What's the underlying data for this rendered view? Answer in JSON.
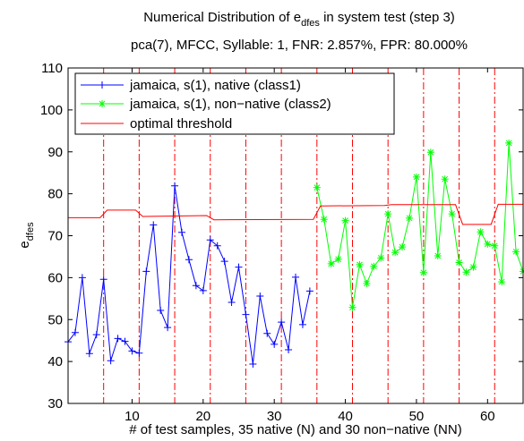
{
  "chart_data": {
    "type": "line",
    "title_line1_prefix": "Numerical Distribution of e",
    "title_line1_sub": "dfes",
    "title_line1_suffix": " in system test (step 3)",
    "title_line2": "pca(7), MFCC, Syllable: 1, FNR: 2.857%, FPR: 80.000%",
    "xlabel": "# of test samples, 35 native (N) and 30 non−native (NN)",
    "ylabel_main": "e",
    "ylabel_sub": "dfes",
    "xlim": [
      1,
      65
    ],
    "ylim": [
      30,
      110
    ],
    "xticks": [
      10,
      20,
      30,
      40,
      50,
      60
    ],
    "yticks": [
      30,
      40,
      50,
      60,
      70,
      80,
      90,
      100,
      110
    ],
    "xtick_labels": [
      "10",
      "20",
      "30",
      "40",
      "50",
      "60"
    ],
    "ytick_labels": [
      "30",
      "40",
      "50",
      "60",
      "70",
      "80",
      "90",
      "100",
      "110"
    ],
    "legend_position": "top-left",
    "grid": false,
    "colors": {
      "native": "#0000ff",
      "non_native": "#00ff00",
      "threshold": "#ff0000",
      "boundary": "#ff0000"
    },
    "series": [
      {
        "name": "jamaica, s(1), native (class1)",
        "marker": "plus",
        "x": [
          1,
          2,
          3,
          4,
          5,
          6,
          7,
          8,
          9,
          10,
          11,
          12,
          13,
          14,
          15,
          16,
          17,
          18,
          19,
          20,
          21,
          22,
          23,
          24,
          25,
          26,
          27,
          28,
          29,
          30,
          31,
          32,
          33,
          34,
          35
        ],
        "values": [
          44.7,
          46.9,
          60.0,
          41.9,
          46.4,
          59.6,
          40.2,
          45.5,
          44.8,
          42.5,
          42.0,
          61.5,
          72.6,
          52.2,
          48.1,
          81.9,
          70.8,
          64.3,
          58.1,
          56.9,
          69.0,
          67.6,
          63.9,
          54.1,
          62.5,
          51.2,
          39.4,
          55.6,
          46.7,
          44.1,
          49.4,
          42.8,
          60.1,
          48.8,
          56.8
        ]
      },
      {
        "name": "jamaica, s(1), non−native (class2)",
        "marker": "star",
        "x": [
          36,
          37,
          38,
          39,
          40,
          41,
          42,
          43,
          44,
          45,
          46,
          47,
          48,
          49,
          50,
          51,
          52,
          53,
          54,
          55,
          56,
          57,
          58,
          59,
          60,
          61,
          62,
          63,
          64,
          65
        ],
        "values": [
          81.5,
          73.9,
          63.3,
          64.4,
          73.6,
          52.9,
          63.1,
          58.6,
          62.7,
          64.7,
          75.2,
          66.0,
          67.3,
          74.2,
          84.0,
          61.2,
          89.9,
          65.2,
          83.5,
          75.2,
          63.6,
          61.3,
          62.5,
          70.9,
          68.0,
          67.6,
          59.0,
          92.1,
          66.2,
          61.5
        ]
      },
      {
        "name": "optimal threshold",
        "marker": "none",
        "x": [
          1,
          5.5,
          6.5,
          10.5,
          11.5,
          20.5,
          21.5,
          35.5,
          36.5,
          45.5,
          46.5,
          55.5,
          56.5,
          60.5,
          61.5,
          65
        ],
        "values": [
          74.3,
          74.3,
          76.1,
          76.1,
          74.6,
          74.8,
          73.8,
          73.9,
          77.1,
          77.2,
          77.4,
          77.4,
          72.7,
          72.7,
          77.5,
          77.5
        ]
      }
    ],
    "vertical_boundaries": [
      6,
      11,
      16,
      21,
      26,
      31,
      36,
      41,
      46,
      51,
      56,
      61
    ]
  }
}
